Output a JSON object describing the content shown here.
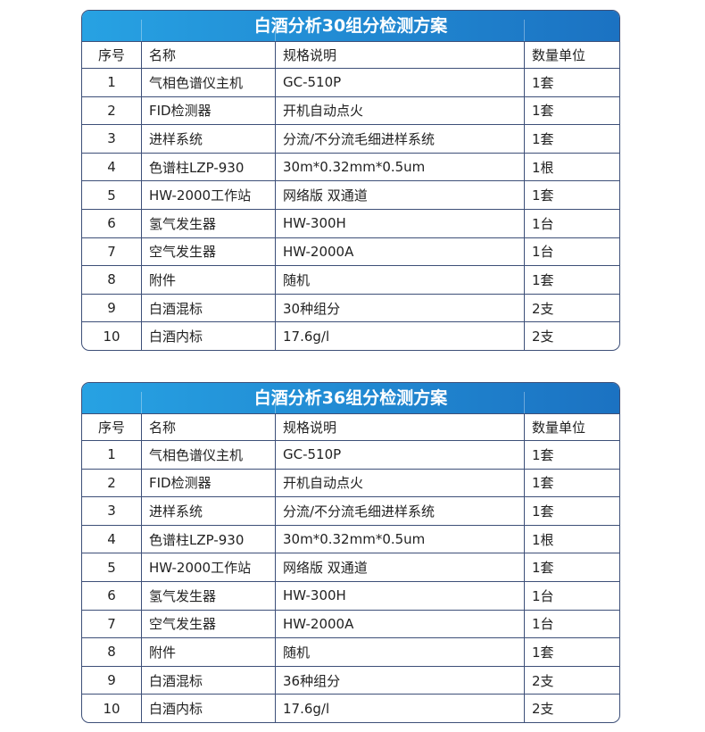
{
  "headers": [
    "序号",
    "名称",
    "规格说明",
    "数量单位"
  ],
  "colors": {
    "header_gradient_start": "#27a2e3",
    "header_gradient_end": "#1b72c2",
    "border": "#3d4f78"
  },
  "tables": [
    {
      "title": "白酒分析30组分检测方案",
      "rows": [
        [
          "1",
          "气相色谱仪主机",
          "GC-510P",
          "1套"
        ],
        [
          "2",
          "FID检测器",
          "开机自动点火",
          "1套"
        ],
        [
          "3",
          "进样系统",
          "分流/不分流毛细进样系统",
          "1套"
        ],
        [
          "4",
          "色谱柱LZP-930",
          "30m*0.32mm*0.5um",
          "1根"
        ],
        [
          "5",
          "HW-2000工作站",
          "网络版 双通道",
          "1套"
        ],
        [
          "6",
          "氢气发生器",
          "HW-300H",
          "1台"
        ],
        [
          "7",
          "空气发生器",
          "HW-2000A",
          "1台"
        ],
        [
          "8",
          "附件",
          "随机",
          "1套"
        ],
        [
          "9",
          "白酒混标",
          "30种组分",
          "2支"
        ],
        [
          "10",
          "白酒内标",
          "17.6g/l",
          "2支"
        ]
      ]
    },
    {
      "title": "白酒分析36组分检测方案",
      "rows": [
        [
          "1",
          "气相色谱仪主机",
          "GC-510P",
          "1套"
        ],
        [
          "2",
          "FID检测器",
          "开机自动点火",
          "1套"
        ],
        [
          "3",
          "进样系统",
          "分流/不分流毛细进样系统",
          "1套"
        ],
        [
          "4",
          "色谱柱LZP-930",
          "30m*0.32mm*0.5um",
          "1根"
        ],
        [
          "5",
          "HW-2000工作站",
          "网络版 双通道",
          "1套"
        ],
        [
          "6",
          "氢气发生器",
          "HW-300H",
          "1台"
        ],
        [
          "7",
          "空气发生器",
          "HW-2000A",
          "1台"
        ],
        [
          "8",
          "附件",
          "随机",
          "1套"
        ],
        [
          "9",
          "白酒混标",
          "36种组分",
          "2支"
        ],
        [
          "10",
          "白酒内标",
          "17.6g/l",
          "2支"
        ]
      ]
    }
  ]
}
